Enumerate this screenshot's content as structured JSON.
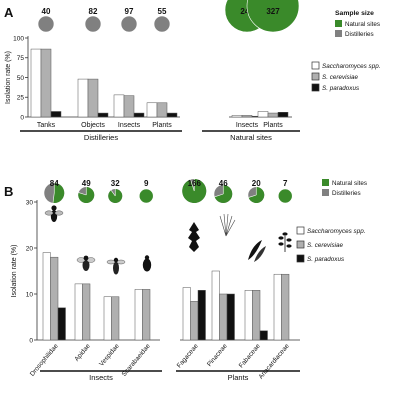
{
  "colors": {
    "natural": "#3a8a2a",
    "distillery": "#808080",
    "saccharomyces": "#ffffff",
    "cerevisiae": "#b0b0b0",
    "paradoxus": "#111111",
    "axis": "#333333"
  },
  "chart_data": [
    {
      "panel": "A",
      "type": "bar",
      "ylabel": "Isolation rate (%)",
      "ylim": [
        0,
        100
      ],
      "yticks": [
        0,
        25,
        50,
        75,
        100
      ],
      "series": [
        {
          "name": "Saccharomyces spp."
        },
        {
          "name": "S. cerevisiae"
        },
        {
          "name": "S. paradoxus"
        }
      ],
      "groups": [
        {
          "label": "Distilleries",
          "source": "distillery",
          "categories": [
            {
              "label": "Tanks",
              "sample_size": 40,
              "natural_fraction": 0,
              "values": [
                86,
                86,
                7
              ]
            },
            {
              "label": "Objects",
              "sample_size": 82,
              "natural_fraction": 0,
              "values": [
                48,
                48,
                5
              ]
            },
            {
              "label": "Insects",
              "sample_size": 97,
              "natural_fraction": 0,
              "values": [
                28,
                27,
                5
              ]
            },
            {
              "label": "Plants",
              "sample_size": 55,
              "natural_fraction": 0,
              "values": [
                18,
                18,
                5
              ]
            }
          ]
        },
        {
          "label": "Natural sites",
          "source": "natural",
          "categories": [
            {
              "label": "Insects",
              "sample_size": 244,
              "natural_fraction": 1,
              "values": [
                2,
                2,
                1
              ]
            },
            {
              "label": "Plants",
              "sample_size": 327,
              "natural_fraction": 1,
              "values": [
                7,
                5,
                6
              ]
            }
          ]
        }
      ],
      "legend": {
        "sample_size_title": "Sample size",
        "natural": "Natural sites",
        "distillery": "Distilleries",
        "bars": [
          "Saccharomyces spp.",
          "S. cerevisiae",
          "S. paradoxus"
        ]
      }
    },
    {
      "panel": "B",
      "type": "bar",
      "ylabel": "Isolation rate (%)",
      "ylim": [
        0,
        30
      ],
      "yticks": [
        0,
        10,
        20,
        30
      ],
      "series": [
        {
          "name": "Saccharomyces spp."
        },
        {
          "name": "S. cerevisiae"
        },
        {
          "name": "S. paradoxus"
        }
      ],
      "groups": [
        {
          "label": "Insects",
          "categories": [
            {
              "label": "Drosophilidae",
              "sample_size": 84,
              "natural_fraction": 0.52,
              "values": [
                19,
                18,
                7
              ],
              "icon": "fly-icon"
            },
            {
              "label": "Apidae",
              "sample_size": 49,
              "natural_fraction": 0.8,
              "values": [
                12.2,
                12.2,
                0
              ],
              "icon": "bee-icon"
            },
            {
              "label": "Vespidae",
              "sample_size": 32,
              "natural_fraction": 0.9,
              "values": [
                9.4,
                9.4,
                0
              ],
              "icon": "wasp-icon"
            },
            {
              "label": "Scarabaeidae",
              "sample_size": 9,
              "natural_fraction": 1,
              "values": [
                11,
                11,
                0
              ],
              "icon": "beetle-icon"
            }
          ]
        },
        {
          "label": "Plants",
          "categories": [
            {
              "label": "Fagaceae",
              "sample_size": 166,
              "natural_fraction": 0.95,
              "values": [
                11.4,
                8.4,
                10.8
              ],
              "icon": "oak-leaf-icon"
            },
            {
              "label": "Pinaceae",
              "sample_size": 46,
              "natural_fraction": 0.7,
              "values": [
                15,
                10,
                10
              ],
              "icon": "pine-needles-icon"
            },
            {
              "label": "Fabaceae",
              "sample_size": 20,
              "natural_fraction": 0.7,
              "values": [
                10.8,
                10.8,
                2
              ],
              "icon": "pod-icon"
            },
            {
              "label": "Anacardiaceae",
              "sample_size": 7,
              "natural_fraction": 1,
              "values": [
                14.3,
                14.3,
                0
              ],
              "icon": "compound-leaf-icon"
            }
          ]
        }
      ],
      "legend": {
        "natural": "Natural sites",
        "distillery": "Distilleries",
        "bars": [
          "Saccharomyces spp.",
          "S. cerevisiae",
          "S. paradoxus"
        ]
      }
    }
  ]
}
